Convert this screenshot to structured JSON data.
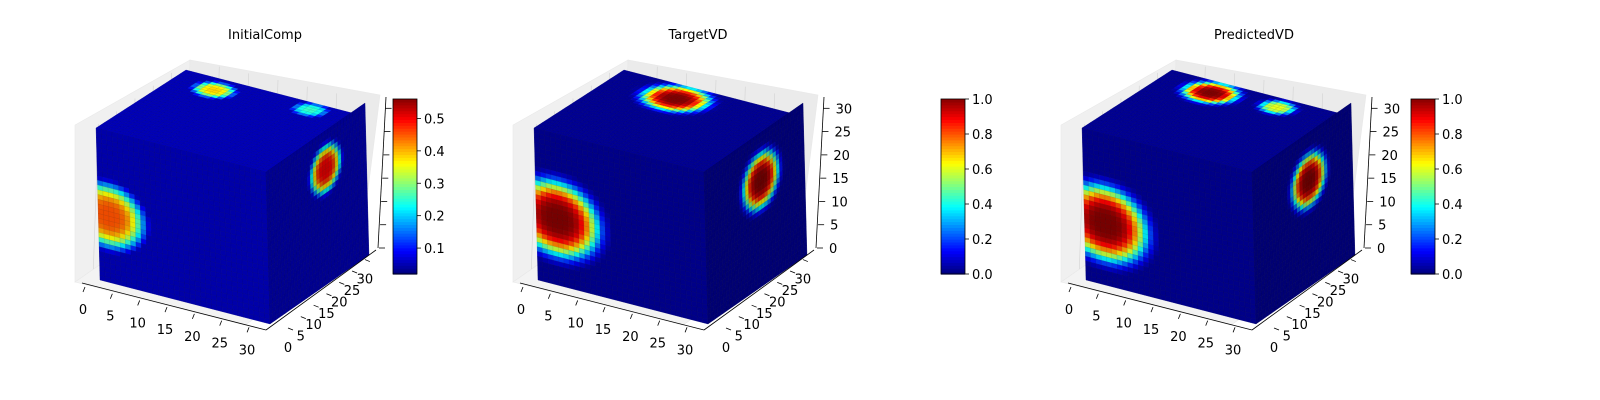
{
  "chart_data": [
    {
      "type": "voxel3d",
      "title": "InitialComp",
      "axes": {
        "x_ticks": [
          "0",
          "5",
          "10",
          "15",
          "20",
          "25",
          "30"
        ],
        "y_ticks": [
          "0",
          "5",
          "10",
          "15",
          "20",
          "25",
          "30"
        ],
        "z_ticks": [],
        "xlim": [
          0,
          32
        ],
        "ylim": [
          0,
          32
        ],
        "zlim": [
          0,
          32
        ],
        "grid": true
      },
      "colorbar": {
        "colormap": "jet",
        "min": 0.02,
        "max": 0.56,
        "ticks": [
          "0.1",
          "0.2",
          "0.3",
          "0.4",
          "0.5"
        ]
      },
      "background_value": 0.05,
      "blobs": [
        {
          "face": "front",
          "u": 2,
          "v": 14,
          "radius": 6.5,
          "peak": 0.45
        },
        {
          "face": "right",
          "u": 19,
          "v": 24,
          "radius": 4.8,
          "peak": 0.5
        },
        {
          "face": "top",
          "u": 8,
          "v": 27,
          "radius": 3.5,
          "peak": 0.38
        },
        {
          "face": "top",
          "u": 25,
          "v": 29,
          "radius": 3.0,
          "peak": 0.25
        }
      ]
    },
    {
      "type": "voxel3d",
      "title": "TargetVD",
      "axes": {
        "x_ticks": [
          "0",
          "5",
          "10",
          "15",
          "20",
          "25",
          "30"
        ],
        "y_ticks": [
          "0",
          "5",
          "10",
          "15",
          "20",
          "25",
          "30"
        ],
        "z_ticks": [
          "0",
          "5",
          "10",
          "15",
          "20",
          "25",
          "30"
        ],
        "xlim": [
          0,
          32
        ],
        "ylim": [
          0,
          32
        ],
        "zlim": [
          0,
          32
        ],
        "grid": true
      },
      "colorbar": {
        "colormap": "jet",
        "min": 0.0,
        "max": 1.0,
        "ticks": [
          "0.0",
          "0.2",
          "0.4",
          "0.6",
          "0.8",
          "1.0"
        ]
      },
      "background_value": 0.02,
      "blobs": [
        {
          "face": "front",
          "u": 4,
          "v": 14,
          "radius": 7.5,
          "peak": 1.0
        },
        {
          "face": "right",
          "u": 18,
          "v": 22,
          "radius": 5.5,
          "peak": 1.0
        },
        {
          "face": "top",
          "u": 13,
          "v": 26,
          "radius": 5.5,
          "peak": 1.0
        }
      ]
    },
    {
      "type": "voxel3d",
      "title": "PredictedVD",
      "axes": {
        "x_ticks": [
          "0",
          "5",
          "10",
          "15",
          "20",
          "25",
          "30"
        ],
        "y_ticks": [
          "0",
          "5",
          "10",
          "15",
          "20",
          "25",
          "30"
        ],
        "z_ticks": [
          "0",
          "5",
          "10",
          "15",
          "20",
          "25",
          "30"
        ],
        "xlim": [
          0,
          32
        ],
        "ylim": [
          0,
          32
        ],
        "zlim": [
          0,
          32
        ],
        "grid": true
      },
      "colorbar": {
        "colormap": "jet",
        "min": 0.0,
        "max": 1.0,
        "ticks": [
          "0.0",
          "0.2",
          "0.4",
          "0.6",
          "0.8",
          "1.0"
        ]
      },
      "background_value": 0.02,
      "blobs": [
        {
          "face": "front",
          "u": 4,
          "v": 13,
          "radius": 7.5,
          "peak": 1.0
        },
        {
          "face": "right",
          "u": 18,
          "v": 22,
          "radius": 5.2,
          "peak": 1.0
        },
        {
          "face": "top",
          "u": 10,
          "v": 27,
          "radius": 4.5,
          "peak": 1.0
        },
        {
          "face": "top",
          "u": 22,
          "v": 28,
          "radius": 3.0,
          "peak": 0.6
        }
      ]
    }
  ]
}
